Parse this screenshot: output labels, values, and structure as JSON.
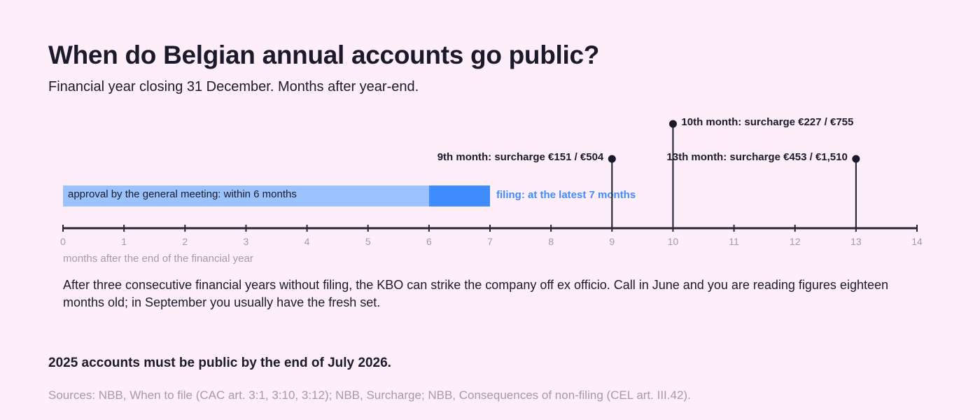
{
  "title": "When do Belgian annual accounts go public?",
  "subtitle": "Financial year closing 31 December. Months after year-end.",
  "colors": {
    "background": "#fdeefa",
    "text": "#1b1a2b",
    "axis": "#2b2438",
    "muted": "#a59aa6",
    "approval_bar": "#9ac2fc",
    "filing_bar": "#3f8cff",
    "filing_label": "#3f8cff",
    "marker": "#1b1a2b"
  },
  "chart_data": {
    "type": "timeline",
    "xlabel": "months after the end of the financial year",
    "xlim": [
      0,
      14
    ],
    "ticks": [
      0,
      1,
      2,
      3,
      4,
      5,
      6,
      7,
      8,
      9,
      10,
      11,
      12,
      13,
      14
    ],
    "grid": false,
    "spans": [
      {
        "label": "approval by the general meeting: within 6 months",
        "start": 0,
        "end": 6,
        "label_position": "inside"
      },
      {
        "label": "filing: at the latest 7 months",
        "start": 6,
        "end": 7,
        "label_position": "right"
      }
    ],
    "milestones": [
      {
        "x": 9,
        "label": "9th month: surcharge €151 / €504",
        "label_side": "left",
        "level": 1
      },
      {
        "x": 10,
        "label": "10th month: surcharge €227 / €755",
        "label_side": "right",
        "level": 2
      },
      {
        "x": 13,
        "label": "13th month: surcharge €453 / €1,510",
        "label_side": "left",
        "level": 1
      }
    ]
  },
  "note": "After three consecutive financial years without filing, the KBO can strike the company off ex officio. Call in June and you are reading figures eighteen months old; in September you usually have the fresh set.",
  "takeaway": "2025 accounts must be public by the end of July 2026.",
  "sources": "Sources: NBB, When to file (CAC art. 3:1, 3:10, 3:12); NBB, Surcharge; NBB, Consequences of non-filing (CEL art. III.42)."
}
